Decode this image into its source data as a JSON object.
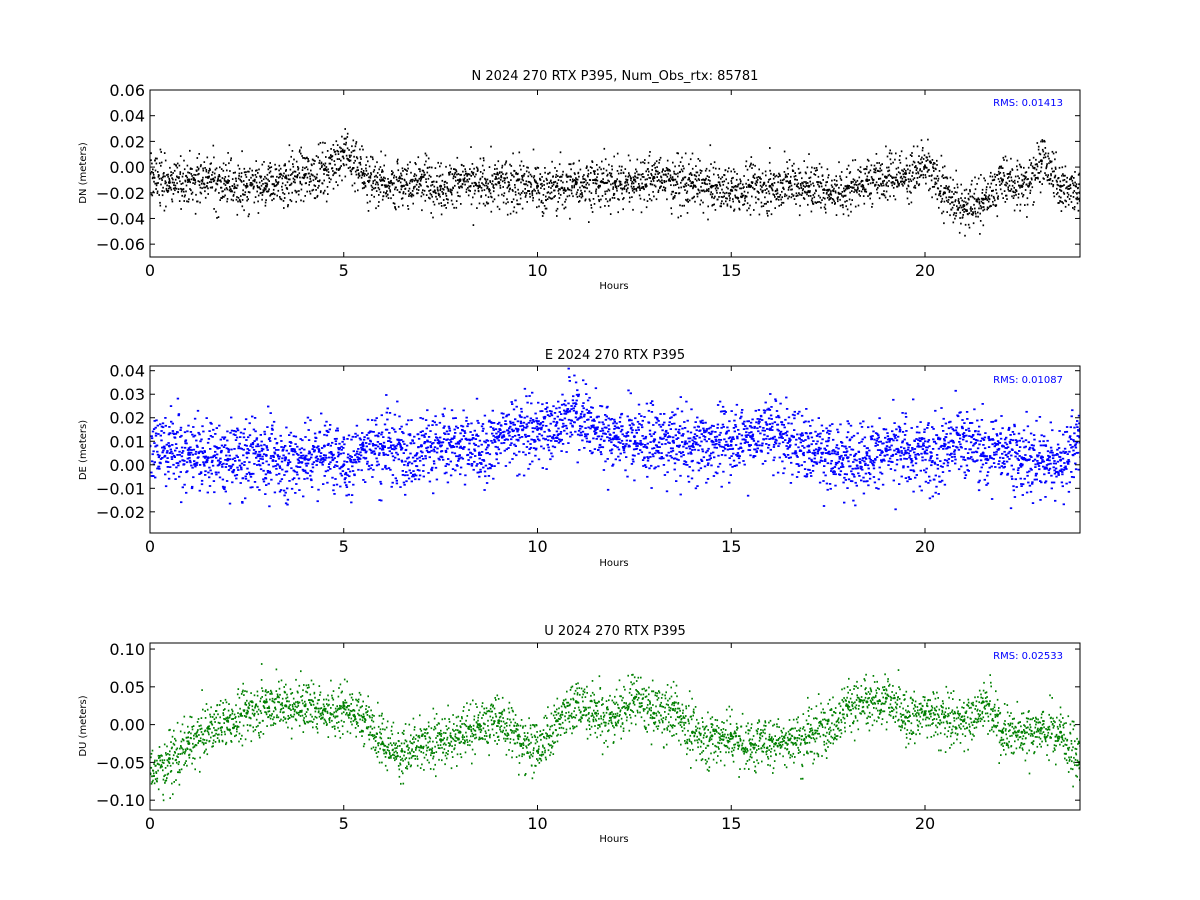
{
  "chart_data": [
    {
      "type": "scatter",
      "title": "N 2024 270 RTX  P395, Num_Obs_rtx: 85781",
      "xlabel": "Hours",
      "ylabel": "DN (meters)",
      "xlim": [
        0,
        24
      ],
      "ylim": [
        -0.07,
        0.06
      ],
      "xticks": [
        0,
        5,
        10,
        15,
        20
      ],
      "xtick_labels": [
        "0",
        "5",
        "10",
        "15",
        "20"
      ],
      "yticks": [
        -0.06,
        -0.04,
        -0.02,
        0.0,
        0.02,
        0.04,
        0.06
      ],
      "ytick_labels": [
        "−0.06",
        "−0.04",
        "−0.02",
        "0.00",
        "0.02",
        "0.04",
        "0.06"
      ],
      "color": "#000000",
      "rms_label": "RMS:  0.01413",
      "rms_color": "#0000ff",
      "series": [
        {
          "x": [
            0,
            0.5,
            1,
            1.5,
            2,
            2.5,
            3,
            3.5,
            4,
            4.5,
            5,
            5.5,
            6,
            6.5,
            7,
            7.5,
            8,
            8.5,
            9,
            9.5,
            10,
            10.5,
            11,
            11.5,
            12,
            12.5,
            13,
            13.5,
            14,
            14.5,
            15,
            15.5,
            16,
            16.5,
            17,
            17.5,
            18,
            18.5,
            19,
            19.5,
            20,
            20.5,
            21,
            21.5,
            22,
            22.5,
            23,
            23.5,
            24
          ],
          "y": [
            -0.005,
            -0.012,
            -0.01,
            -0.008,
            -0.012,
            -0.015,
            -0.015,
            -0.008,
            -0.006,
            -0.002,
            0.012,
            -0.005,
            -0.01,
            -0.015,
            -0.008,
            -0.015,
            -0.01,
            -0.015,
            -0.012,
            -0.01,
            -0.015,
            -0.015,
            -0.012,
            -0.01,
            -0.012,
            -0.01,
            -0.008,
            -0.01,
            -0.012,
            -0.015,
            -0.018,
            -0.015,
            -0.015,
            -0.012,
            -0.015,
            -0.018,
            -0.015,
            -0.01,
            -0.008,
            -0.005,
            0.0,
            -0.02,
            -0.03,
            -0.025,
            -0.01,
            -0.015,
            0.005,
            -0.015,
            -0.02
          ]
        }
      ]
    },
    {
      "type": "scatter",
      "title": "E 2024 270 RTX  P395",
      "xlabel": "Hours",
      "ylabel": "DE (meters)",
      "xlim": [
        0,
        24
      ],
      "ylim": [
        -0.029,
        0.042
      ],
      "xticks": [
        0,
        5,
        10,
        15,
        20
      ],
      "xtick_labels": [
        "0",
        "5",
        "10",
        "15",
        "20"
      ],
      "yticks": [
        -0.02,
        -0.01,
        0.0,
        0.01,
        0.02,
        0.03,
        0.04
      ],
      "ytick_labels": [
        "−0.02",
        "−0.01",
        "0.00",
        "0.01",
        "0.02",
        "0.03",
        "0.04"
      ],
      "color": "#0000ff",
      "rms_label": "RMS:  0.01087",
      "rms_color": "#0000ff",
      "series": [
        {
          "x": [
            0,
            0.5,
            1,
            1.5,
            2,
            2.5,
            3,
            3.5,
            4,
            4.5,
            5,
            5.5,
            6,
            6.5,
            7,
            7.5,
            8,
            8.5,
            9,
            9.5,
            10,
            10.5,
            11,
            11.5,
            12,
            12.5,
            13,
            13.5,
            14,
            14.5,
            15,
            15.5,
            16,
            16.5,
            17,
            17.5,
            18,
            18.5,
            19,
            19.5,
            20,
            20.5,
            21,
            21.5,
            22,
            22.5,
            23,
            23.5,
            24
          ],
          "y": [
            0.008,
            0.008,
            0.005,
            0.003,
            0.002,
            0.005,
            0.004,
            0.003,
            0.003,
            0.008,
            0.0,
            0.008,
            0.008,
            0.007,
            0.008,
            0.008,
            0.01,
            0.005,
            0.012,
            0.015,
            0.015,
            0.018,
            0.022,
            0.015,
            0.012,
            0.012,
            0.01,
            0.01,
            0.008,
            0.01,
            0.01,
            0.012,
            0.015,
            0.01,
            0.008,
            0.005,
            0.003,
            0.005,
            0.006,
            0.005,
            0.005,
            0.008,
            0.012,
            0.005,
            0.008,
            0.003,
            0.003,
            0.002,
            0.012
          ]
        }
      ]
    },
    {
      "type": "scatter",
      "title": "U 2024 270 RTX  P395",
      "xlabel": "Hours",
      "ylabel": "DU (meters)",
      "xlim": [
        0,
        24
      ],
      "ylim": [
        -0.113,
        0.108
      ],
      "xticks": [
        0,
        5,
        10,
        15,
        20
      ],
      "xtick_labels": [
        "0",
        "5",
        "10",
        "15",
        "20"
      ],
      "yticks": [
        -0.1,
        -0.05,
        0.0,
        0.05,
        0.1
      ],
      "ytick_labels": [
        "−0.10",
        "−0.05",
        "0.00",
        "0.05",
        "0.10"
      ],
      "color": "#008000",
      "rms_label": "RMS:  0.02533",
      "rms_color": "#0000ff",
      "series": [
        {
          "x": [
            0,
            0.5,
            1,
            1.5,
            2,
            2.5,
            3,
            3.5,
            4,
            4.5,
            5,
            5.5,
            6,
            6.5,
            7,
            7.5,
            8,
            8.5,
            9,
            9.5,
            10,
            10.5,
            11,
            11.5,
            12,
            12.5,
            13,
            13.5,
            14,
            14.5,
            15,
            15.5,
            16,
            16.5,
            17,
            17.5,
            18,
            18.5,
            19,
            19.5,
            20,
            20.5,
            21,
            21.5,
            22,
            22.5,
            23,
            23.5,
            24
          ],
          "y": [
            -0.065,
            -0.045,
            -0.025,
            -0.005,
            0.005,
            0.015,
            0.03,
            0.025,
            0.025,
            0.02,
            0.025,
            0.01,
            -0.025,
            -0.035,
            -0.03,
            -0.02,
            -0.01,
            0.0,
            0.005,
            -0.015,
            -0.035,
            0.005,
            0.03,
            0.015,
            0.01,
            0.035,
            0.015,
            0.02,
            -0.01,
            -0.015,
            -0.015,
            -0.025,
            -0.02,
            -0.02,
            -0.015,
            0.005,
            0.025,
            0.03,
            0.035,
            0.01,
            0.015,
            0.01,
            0.005,
            0.03,
            -0.01,
            -0.01,
            -0.005,
            -0.01,
            -0.05
          ]
        }
      ]
    }
  ]
}
